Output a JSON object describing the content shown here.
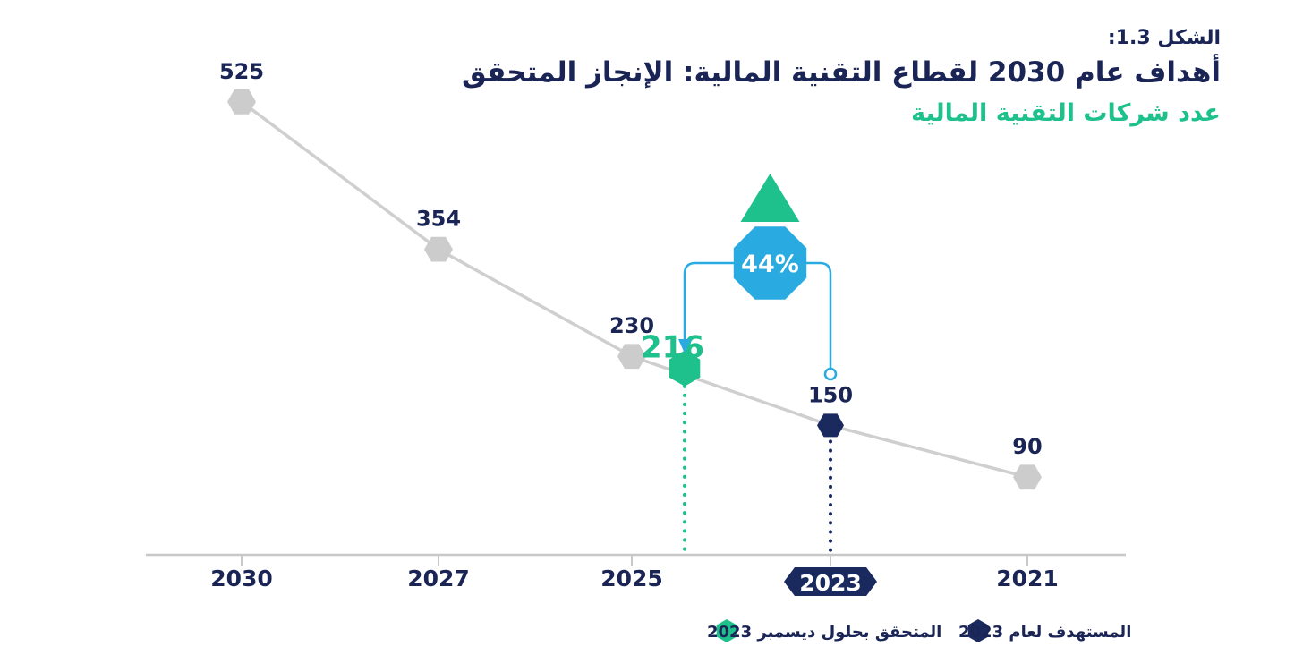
{
  "header": {
    "figure_label": "الشكل 1.3:",
    "title": "أهداف عام 2030 لقطاع التقنية المالية: الإنجاز المتحقق",
    "subtitle": "عدد شركات التقنية المالية"
  },
  "chart_data": {
    "type": "line",
    "x_categories": [
      "2021",
      "2023",
      "2025",
      "2027",
      "2030"
    ],
    "series": [
      {
        "points": [
          {
            "x": "2021",
            "y": 90
          },
          {
            "x": "2023",
            "y": 150
          },
          {
            "x": "2025",
            "y": 230
          },
          {
            "x": "2027",
            "y": 354
          },
          {
            "x": "2030",
            "y": 525
          }
        ]
      }
    ],
    "achieved": {
      "value": 216,
      "label": "216"
    },
    "target_2023": {
      "x": "2023",
      "value": 150
    },
    "growth_badge": "44%",
    "highlighted_x_label": "2023",
    "legend": [
      {
        "label": "المستهدف لعام 2023",
        "color": "#1a2a5e",
        "marker": "hexagon"
      },
      {
        "label": "المتحقق بحلول ديسمبر 2023",
        "color": "#1ec08c",
        "marker": "hexagon"
      }
    ],
    "colors": {
      "line": "#cfcfcf",
      "target_marker": "#9e9e9e",
      "navy": "#1a2a5e",
      "green": "#1ec08c",
      "blue": "#29abe2",
      "text": "#1a2556"
    },
    "grid": false,
    "legend_position": "bottom"
  }
}
